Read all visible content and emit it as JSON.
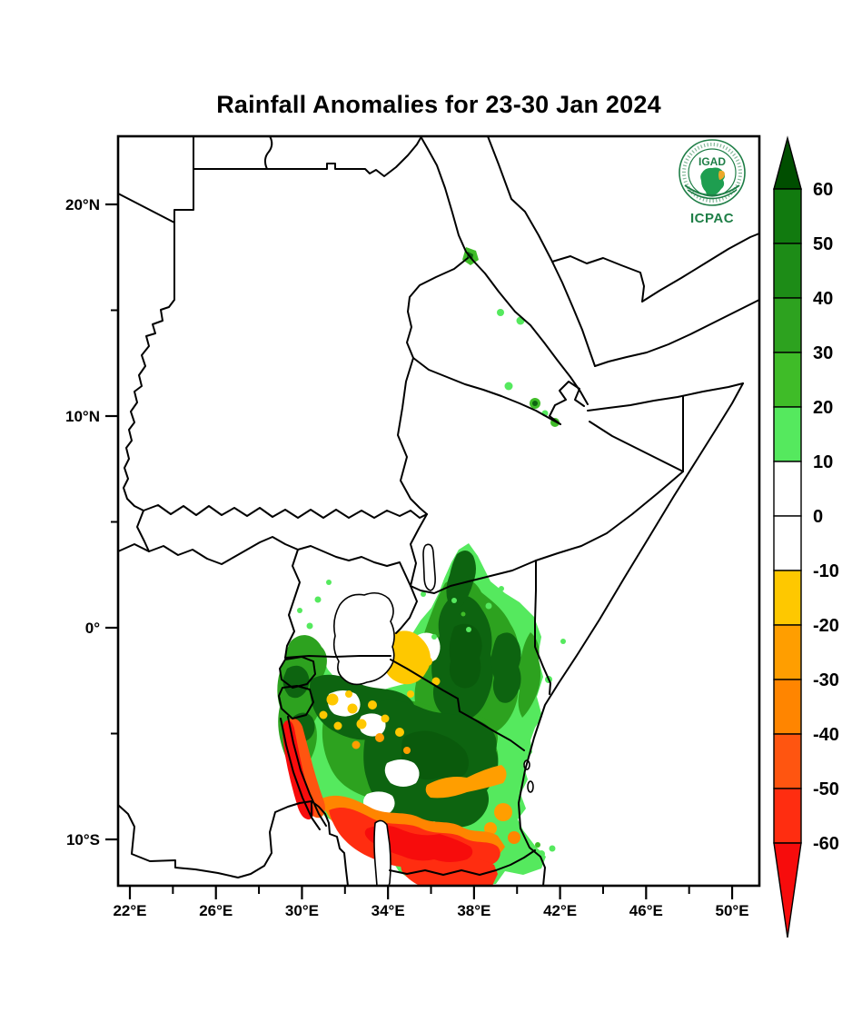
{
  "title": "Rainfall Anomalies for 23-30 Jan 2024",
  "logo": {
    "top_text": "IGAD",
    "bottom_text": "ICPAC",
    "ring_color": "#1e7e46",
    "africa_color": "#1e9e50",
    "horn_color": "#eba829"
  },
  "axes": {
    "x": {
      "major": [
        {
          "label": "22°E",
          "lon": 22
        },
        {
          "label": "26°E",
          "lon": 26
        },
        {
          "label": "30°E",
          "lon": 30
        },
        {
          "label": "34°E",
          "lon": 34
        },
        {
          "label": "38°E",
          "lon": 38
        },
        {
          "label": "42°E",
          "lon": 42
        },
        {
          "label": "46°E",
          "lon": 46
        },
        {
          "label": "50°E",
          "lon": 50
        }
      ],
      "minor_lons": [
        24,
        28,
        32,
        36,
        40,
        44,
        48
      ]
    },
    "y": {
      "major": [
        {
          "label": "20°N",
          "lat": 20
        },
        {
          "label": "10°N",
          "lat": 10
        },
        {
          "label": "0°",
          "lat": 0
        },
        {
          "label": "10°S",
          "lat": -10
        }
      ],
      "minor_lats": [
        15,
        5,
        -5
      ]
    }
  },
  "colorbar": {
    "tick_labels": [
      "60",
      "50",
      "40",
      "30",
      "20",
      "10",
      "0",
      "-10",
      "-20",
      "-30",
      "-40",
      "-50",
      "-60"
    ],
    "segment_colors_top_to_bottom": [
      "#117a0f",
      "#1d8c17",
      "#2da21f",
      "#3fbc28",
      "#55e95e",
      "#ffffff",
      "#ffffff",
      "#fec800",
      "#ff9e00",
      "#ff8500",
      "#ff5510",
      "#ff2d10"
    ],
    "arrow_top_color": "#004e00",
    "arrow_bottom_color": "#f70c0c"
  },
  "palette": {
    "p60": "#0a5a0c",
    "p50": "#0d6410",
    "p40": "#1d8c17",
    "p30": "#2da21f",
    "p20": "#3fbc28",
    "p10": "#55e95e",
    "zero": "#ffffff",
    "m10": "#fec800",
    "m20": "#ff9e00",
    "m30": "#ff8500",
    "m40": "#ff5510",
    "m50": "#ff2d10",
    "m60": "#f70c0c"
  },
  "map_data": {
    "type": "filled-contour geographic map",
    "title": "Rainfall Anomalies for 23-30 Jan 2024",
    "variable": "Rainfall anomaly",
    "period": "23-30 Jan 2024",
    "region": "IGAD / Greater Horn of Africa",
    "lon_range_deg_e": [
      21.5,
      50.8
    ],
    "lat_range_deg": [
      -12.2,
      23.2
    ],
    "colorbar_values": [
      60,
      50,
      40,
      30,
      20,
      10,
      0,
      -10,
      -20,
      -30,
      -40,
      -50,
      -60
    ],
    "anomaly_regions": [
      {
        "area": "Kenya, Uganda east of Lake Victoria and central/northern Tanzania",
        "sign": "positive",
        "magnitude": "20 to >60"
      },
      {
        "area": "Southern Tanzania border strip",
        "sign": "negative",
        "magnitude": "-40 to < -60"
      },
      {
        "area": "Patch north-east of Lake Victoria (western Kenya)",
        "sign": "negative",
        "magnitude": "-10 to -30"
      },
      {
        "area": "Lake Tanganyika eastern shore strip",
        "sign": "negative",
        "magnitude": "-40 to -60"
      },
      {
        "area": "Eritrea Red Sea coast and scattered spots in southern Ethiopia / Sudan coast",
        "sign": "positive",
        "magnitude": "10 to 30"
      }
    ]
  }
}
